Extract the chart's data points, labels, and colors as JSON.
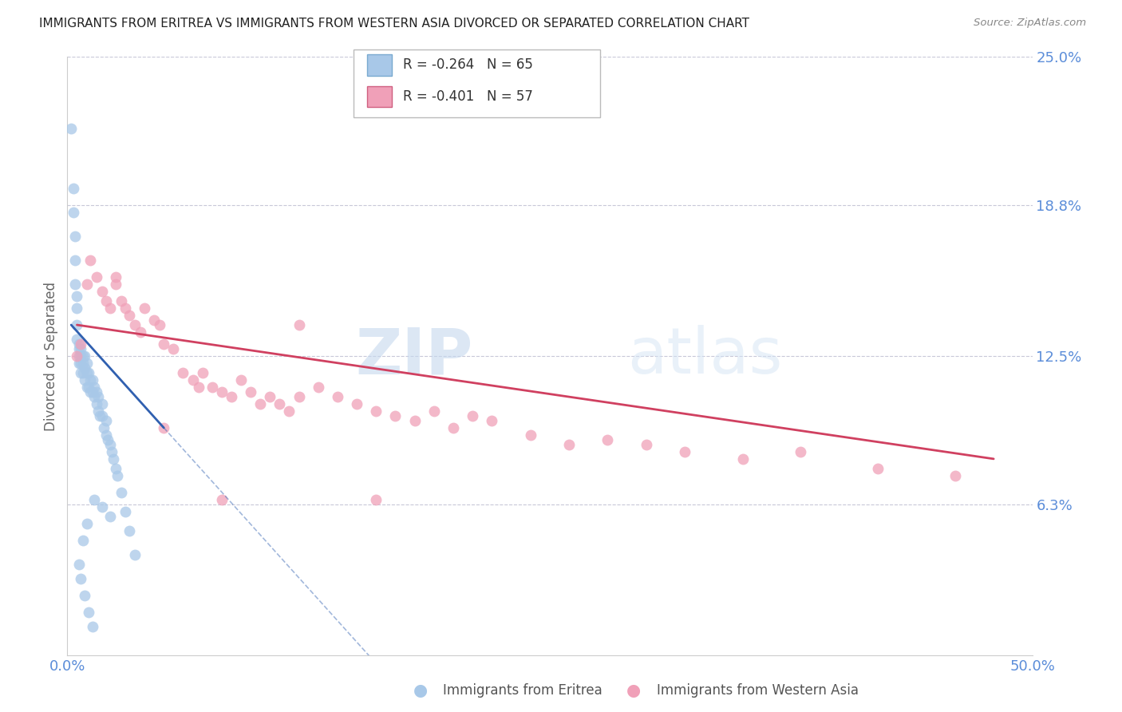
{
  "title": "IMMIGRANTS FROM ERITREA VS IMMIGRANTS FROM WESTERN ASIA DIVORCED OR SEPARATED CORRELATION CHART",
  "source": "Source: ZipAtlas.com",
  "ylabel": "Divorced or Separated",
  "legend_label1": "Immigrants from Eritrea",
  "legend_label2": "Immigrants from Western Asia",
  "r1": "-0.264",
  "n1": "65",
  "r2": "-0.401",
  "n2": "57",
  "xlim": [
    0.0,
    0.5
  ],
  "ylim": [
    0.0,
    0.25
  ],
  "yticks": [
    0.063,
    0.125,
    0.188,
    0.25
  ],
  "ytick_labels": [
    "6.3%",
    "12.5%",
    "18.8%",
    "25.0%"
  ],
  "xtick_positions": [
    0.0,
    0.1,
    0.2,
    0.3,
    0.4,
    0.5
  ],
  "xtick_labels": [
    "0.0%",
    "",
    "",
    "",
    "",
    "50.0%"
  ],
  "color1": "#a8c8e8",
  "color1_line": "#3060b0",
  "color2": "#f0a0b8",
  "color2_line": "#d04060",
  "watermark_zip": "ZIP",
  "watermark_atlas": "atlas",
  "background": "#ffffff",
  "scatter1_x": [
    0.002,
    0.003,
    0.003,
    0.004,
    0.004,
    0.004,
    0.005,
    0.005,
    0.005,
    0.005,
    0.006,
    0.006,
    0.006,
    0.006,
    0.007,
    0.007,
    0.007,
    0.007,
    0.008,
    0.008,
    0.008,
    0.009,
    0.009,
    0.009,
    0.01,
    0.01,
    0.01,
    0.011,
    0.011,
    0.012,
    0.012,
    0.013,
    0.013,
    0.014,
    0.014,
    0.015,
    0.015,
    0.016,
    0.016,
    0.017,
    0.018,
    0.018,
    0.019,
    0.02,
    0.02,
    0.021,
    0.022,
    0.023,
    0.024,
    0.025,
    0.026,
    0.028,
    0.03,
    0.032,
    0.035,
    0.014,
    0.018,
    0.022,
    0.01,
    0.008,
    0.006,
    0.007,
    0.009,
    0.011,
    0.013
  ],
  "scatter1_y": [
    0.22,
    0.195,
    0.185,
    0.175,
    0.165,
    0.155,
    0.15,
    0.145,
    0.138,
    0.132,
    0.13,
    0.128,
    0.125,
    0.122,
    0.128,
    0.125,
    0.122,
    0.118,
    0.125,
    0.122,
    0.118,
    0.125,
    0.12,
    0.115,
    0.122,
    0.118,
    0.112,
    0.118,
    0.112,
    0.115,
    0.11,
    0.115,
    0.11,
    0.112,
    0.108,
    0.11,
    0.105,
    0.108,
    0.102,
    0.1,
    0.105,
    0.1,
    0.095,
    0.098,
    0.092,
    0.09,
    0.088,
    0.085,
    0.082,
    0.078,
    0.075,
    0.068,
    0.06,
    0.052,
    0.042,
    0.065,
    0.062,
    0.058,
    0.055,
    0.048,
    0.038,
    0.032,
    0.025,
    0.018,
    0.012
  ],
  "scatter2_x": [
    0.005,
    0.007,
    0.01,
    0.012,
    0.015,
    0.018,
    0.02,
    0.022,
    0.025,
    0.028,
    0.03,
    0.032,
    0.035,
    0.038,
    0.04,
    0.045,
    0.048,
    0.05,
    0.055,
    0.06,
    0.065,
    0.068,
    0.07,
    0.075,
    0.08,
    0.085,
    0.09,
    0.095,
    0.1,
    0.105,
    0.11,
    0.115,
    0.12,
    0.13,
    0.14,
    0.15,
    0.16,
    0.17,
    0.18,
    0.19,
    0.2,
    0.21,
    0.22,
    0.24,
    0.26,
    0.28,
    0.3,
    0.32,
    0.35,
    0.38,
    0.42,
    0.46,
    0.05,
    0.08,
    0.12,
    0.16,
    0.025
  ],
  "scatter2_y": [
    0.125,
    0.13,
    0.155,
    0.165,
    0.158,
    0.152,
    0.148,
    0.145,
    0.158,
    0.148,
    0.145,
    0.142,
    0.138,
    0.135,
    0.145,
    0.14,
    0.138,
    0.13,
    0.128,
    0.118,
    0.115,
    0.112,
    0.118,
    0.112,
    0.11,
    0.108,
    0.115,
    0.11,
    0.105,
    0.108,
    0.105,
    0.102,
    0.108,
    0.112,
    0.108,
    0.105,
    0.102,
    0.1,
    0.098,
    0.102,
    0.095,
    0.1,
    0.098,
    0.092,
    0.088,
    0.09,
    0.088,
    0.085,
    0.082,
    0.085,
    0.078,
    0.075,
    0.095,
    0.065,
    0.138,
    0.065,
    0.155
  ],
  "trendline1_x_start": 0.002,
  "trendline1_x_end": 0.05,
  "trendline1_y_start": 0.138,
  "trendline1_y_end": 0.095,
  "trendline1_dash_x_end": 0.38,
  "trendline2_x_start": 0.005,
  "trendline2_x_end": 0.48,
  "trendline2_y_start": 0.138,
  "trendline2_y_end": 0.082
}
